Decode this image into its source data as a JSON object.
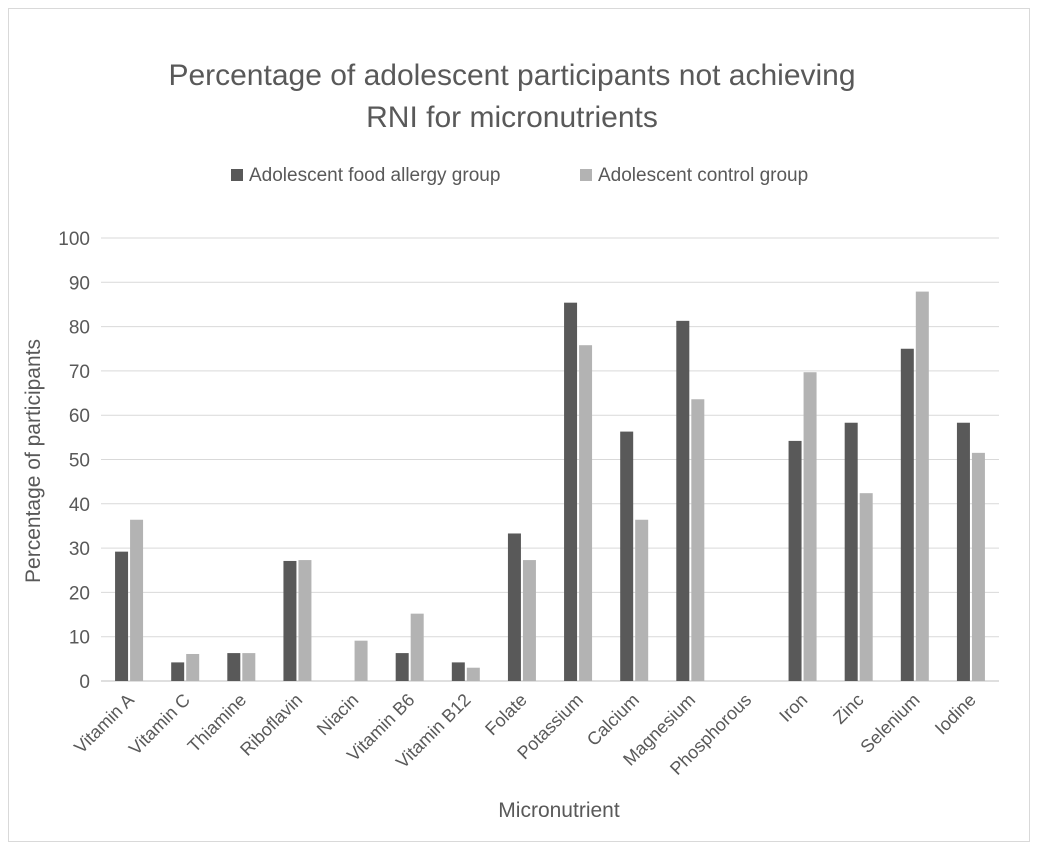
{
  "chart_data": {
    "type": "bar",
    "title_lines": [
      "Percentage of adolescent participants not achieving",
      "RNI for micronutrients"
    ],
    "xlabel": "Micronutrient",
    "ylabel": "Percentage of participants",
    "ylim": [
      0,
      100
    ],
    "yticks": [
      0,
      10,
      20,
      30,
      40,
      50,
      60,
      70,
      80,
      90,
      100
    ],
    "grid": true,
    "legend_position": "top",
    "categories": [
      "Vitamin A",
      "Vitamin C",
      "Thiamine",
      "Riboflavin",
      "Niacin",
      "Vitamin B6",
      "Vitamin B12",
      "Folate",
      "Potassium",
      "Calcium",
      "Magnesium",
      "Phosphorous",
      "Iron",
      "Zinc",
      "Selenium",
      "Iodine"
    ],
    "series": [
      {
        "name": "Adolescent food allergy group",
        "color": "#595959",
        "values": [
          29.2,
          4.2,
          6.3,
          27.1,
          0,
          6.3,
          4.2,
          33.3,
          85.4,
          56.3,
          81.3,
          0,
          54.2,
          58.3,
          75.0,
          58.3
        ]
      },
      {
        "name": "Adolescent control group",
        "color": "#b3b3b3",
        "values": [
          36.4,
          6.1,
          6.3,
          27.3,
          9.1,
          15.2,
          3.0,
          27.3,
          75.8,
          36.4,
          63.6,
          0,
          69.7,
          42.4,
          87.9,
          51.5
        ]
      }
    ]
  }
}
